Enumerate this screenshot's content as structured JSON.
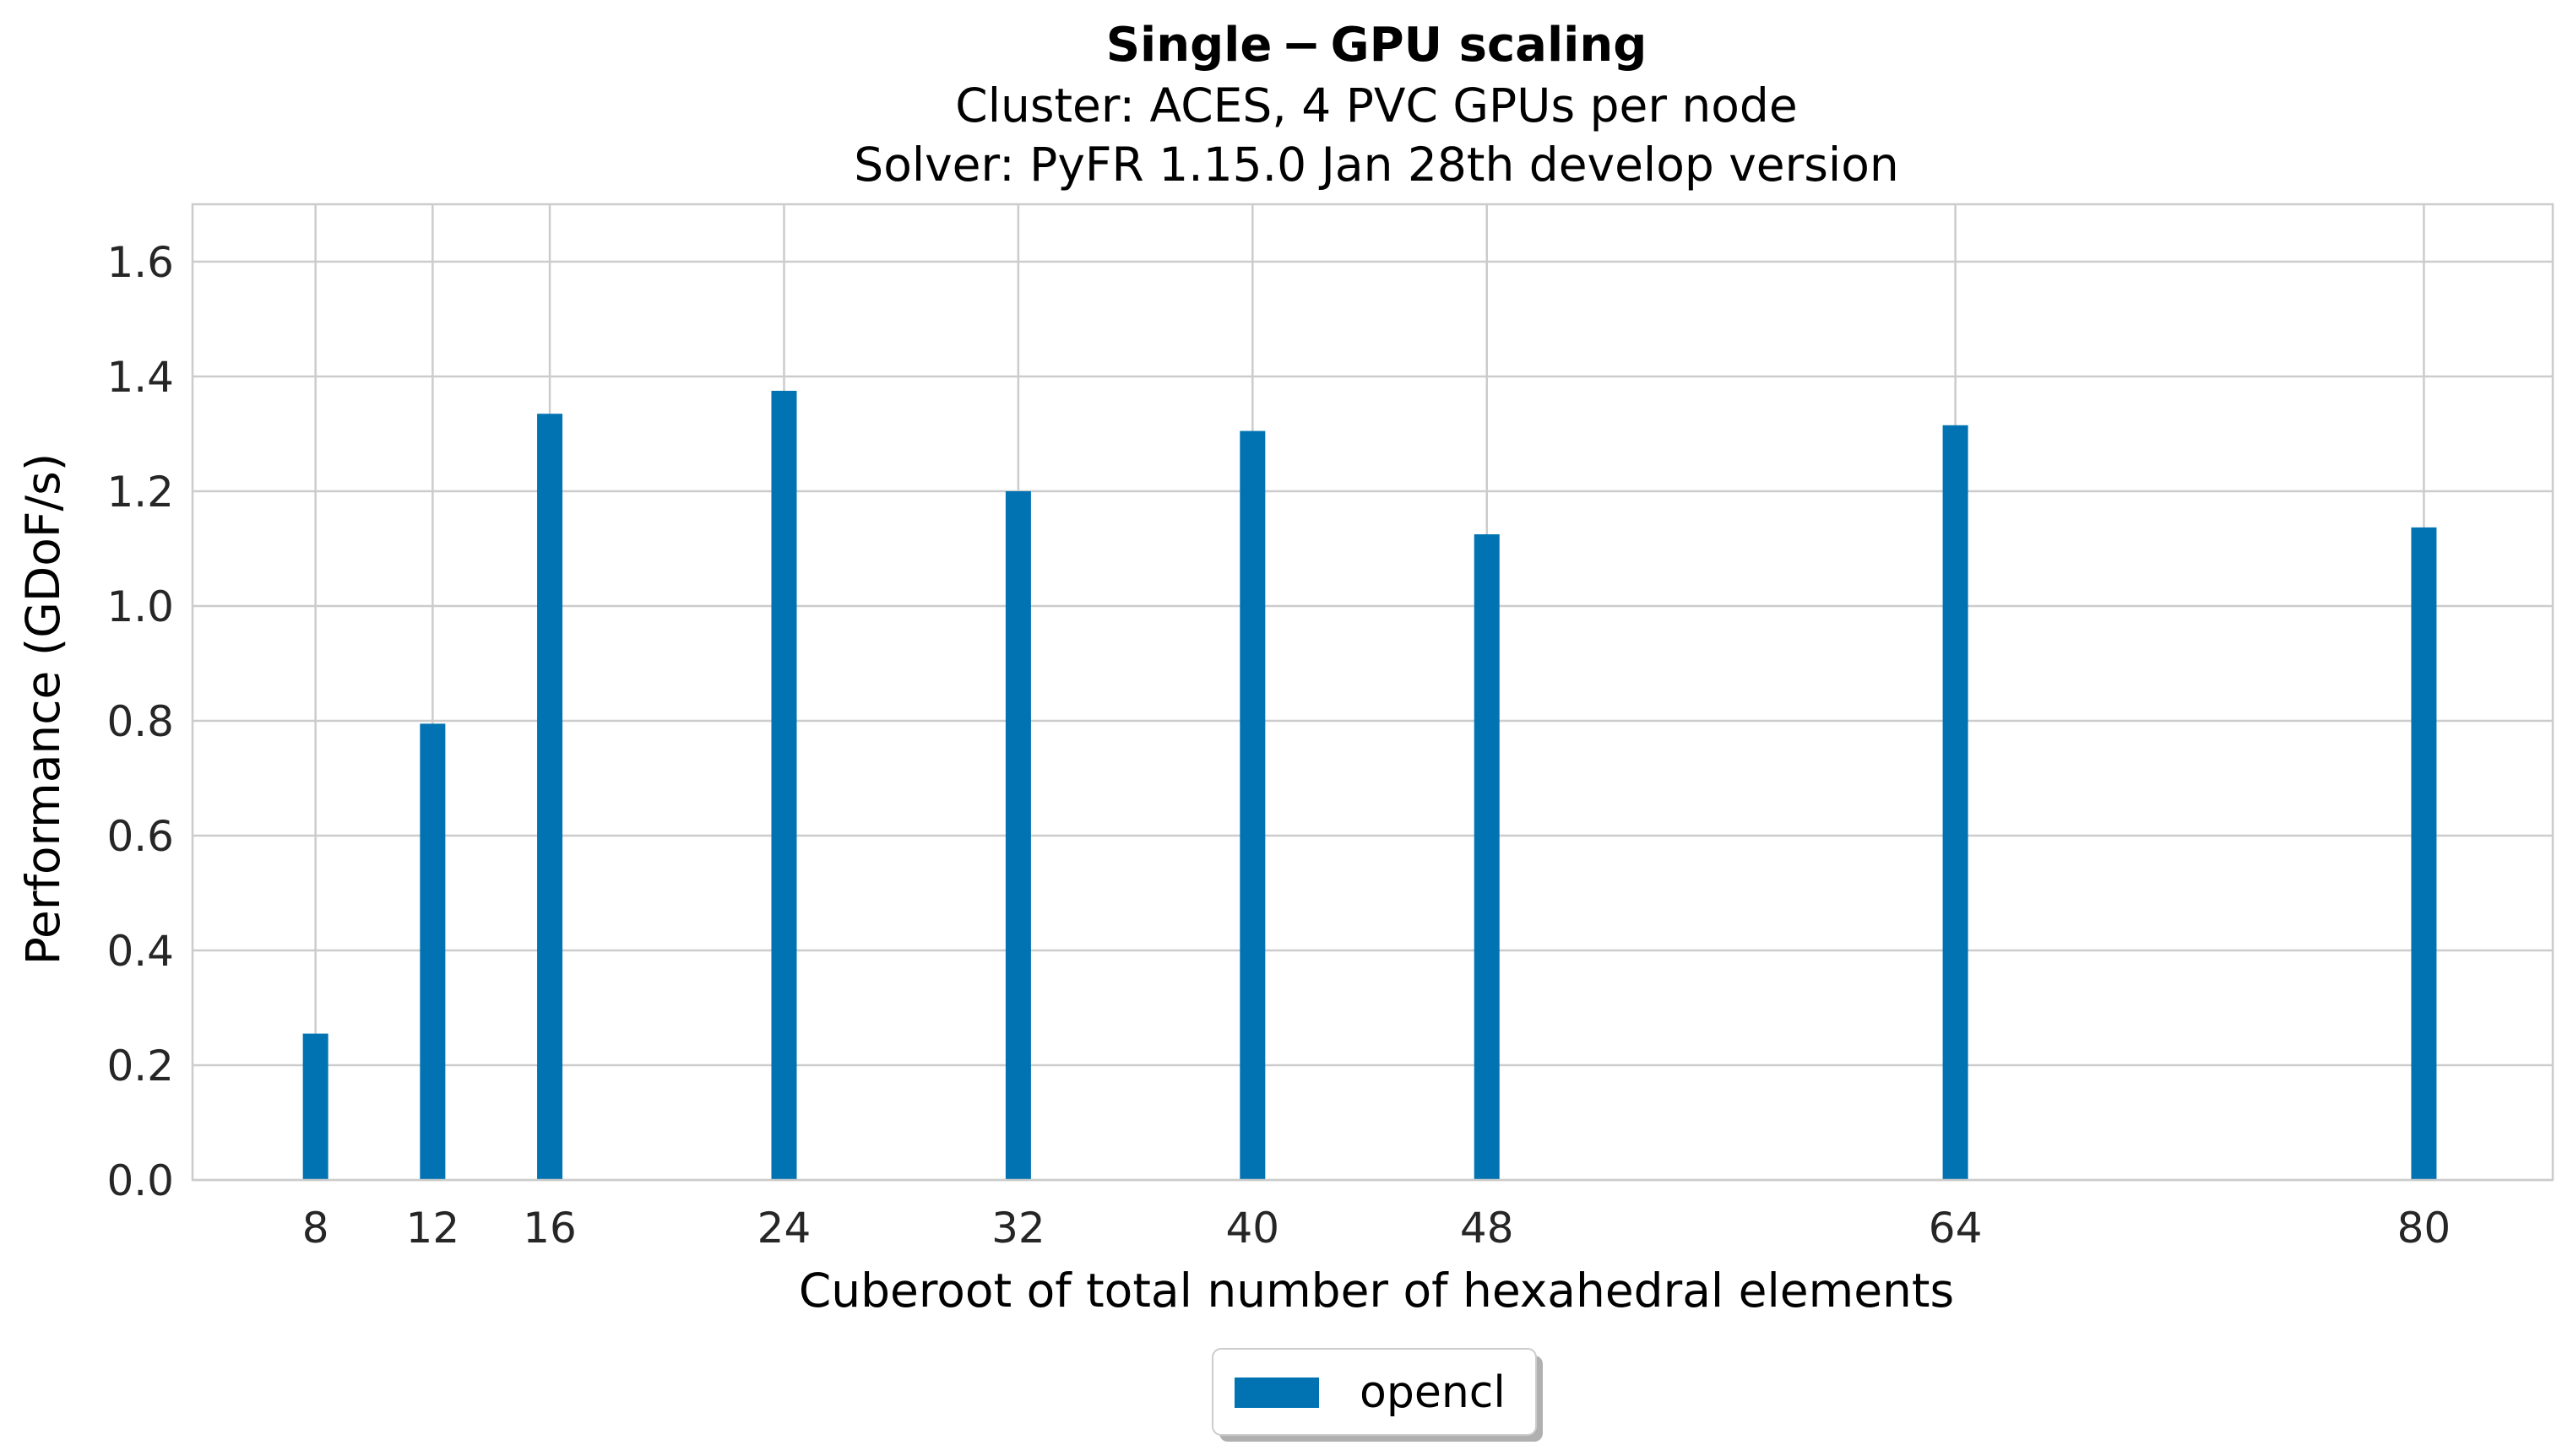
{
  "chart_data": {
    "type": "bar",
    "title": "Single − GPU scaling",
    "subtitle_lines": [
      "Cluster: ACES, 4 PVC GPUs per node",
      "Solver: PyFR 1.15.0 Jan 28th develop version"
    ],
    "xlabel": "Cuberoot of total number of hexahedral elements",
    "ylabel": "Performance (GDoF/s)",
    "x": [
      8,
      12,
      16,
      24,
      32,
      40,
      48,
      64,
      80
    ],
    "x_tick_labels": [
      "8",
      "12",
      "16",
      "24",
      "32",
      "40",
      "48",
      "64",
      "80"
    ],
    "xlim": [
      3.8,
      84.4
    ],
    "ylim": [
      0,
      1.7
    ],
    "y_ticks": [
      0.0,
      0.2,
      0.4,
      0.6,
      0.8,
      1.0,
      1.2,
      1.4,
      1.6
    ],
    "y_tick_labels": [
      "0.0",
      "0.2",
      "0.4",
      "0.6",
      "0.8",
      "1.0",
      "1.2",
      "1.4",
      "1.6"
    ],
    "series": [
      {
        "name": "opencl",
        "color": "#0173b2",
        "values": [
          0.255,
          0.795,
          1.335,
          1.375,
          1.2,
          1.305,
          1.125,
          1.315,
          1.137
        ]
      }
    ],
    "grid": true,
    "legend_placement": "bottom-center"
  }
}
